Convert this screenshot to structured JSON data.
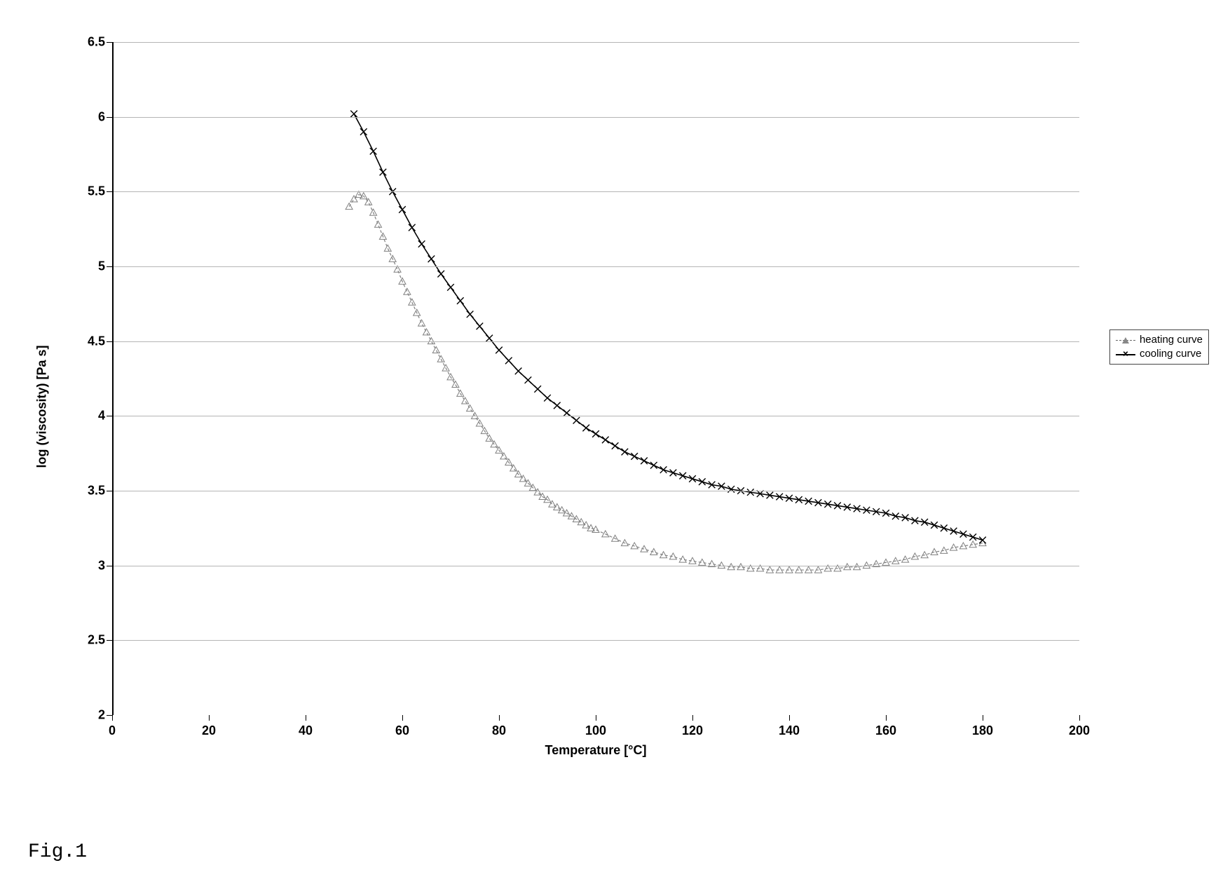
{
  "figure": {
    "caption": "Fig.1",
    "caption_font": "Courier New",
    "caption_fontsize": 28
  },
  "chart": {
    "type": "line",
    "background_color": "#ffffff",
    "grid_color": "#b5b5b5",
    "axis_color": "#000000",
    "font_family": "Arial",
    "label_fontsize": 18,
    "tick_fontsize": 18,
    "x_axis": {
      "title": "Temperature [°C]",
      "min": 0,
      "max": 200,
      "tick_step": 20,
      "ticks": [
        0,
        20,
        40,
        60,
        80,
        100,
        120,
        140,
        160,
        180,
        200
      ]
    },
    "y_axis": {
      "title": "log (viscosity) [Pa s]",
      "min": 2,
      "max": 6.5,
      "tick_step": 0.5,
      "ticks": [
        2,
        2.5,
        3,
        3.5,
        4,
        4.5,
        5,
        5.5,
        6,
        6.5
      ]
    },
    "legend": {
      "position": "right-middle",
      "border_color": "#444444",
      "items": [
        {
          "key": "heating",
          "label": "heating curve",
          "marker": "triangle",
          "line_style": "dashed",
          "color": "#808080"
        },
        {
          "key": "cooling",
          "label": "cooling curve",
          "marker": "x",
          "line_style": "solid",
          "color": "#000000"
        }
      ]
    },
    "series": {
      "heating": {
        "label": "heating curve",
        "marker": "triangle",
        "marker_size": 5,
        "line_style": "dashed",
        "line_width": 1.2,
        "color": "#808080",
        "data": [
          [
            49,
            5.4
          ],
          [
            50,
            5.45
          ],
          [
            51,
            5.48
          ],
          [
            52,
            5.47
          ],
          [
            53,
            5.43
          ],
          [
            54,
            5.36
          ],
          [
            55,
            5.28
          ],
          [
            56,
            5.2
          ],
          [
            57,
            5.12
          ],
          [
            58,
            5.05
          ],
          [
            59,
            4.98
          ],
          [
            60,
            4.9
          ],
          [
            61,
            4.83
          ],
          [
            62,
            4.76
          ],
          [
            63,
            4.69
          ],
          [
            64,
            4.62
          ],
          [
            65,
            4.56
          ],
          [
            66,
            4.5
          ],
          [
            67,
            4.44
          ],
          [
            68,
            4.38
          ],
          [
            69,
            4.32
          ],
          [
            70,
            4.26
          ],
          [
            71,
            4.21
          ],
          [
            72,
            4.15
          ],
          [
            73,
            4.1
          ],
          [
            74,
            4.05
          ],
          [
            75,
            4.0
          ],
          [
            76,
            3.95
          ],
          [
            77,
            3.9
          ],
          [
            78,
            3.85
          ],
          [
            79,
            3.81
          ],
          [
            80,
            3.77
          ],
          [
            81,
            3.73
          ],
          [
            82,
            3.69
          ],
          [
            83,
            3.65
          ],
          [
            84,
            3.61
          ],
          [
            85,
            3.58
          ],
          [
            86,
            3.55
          ],
          [
            87,
            3.52
          ],
          [
            88,
            3.49
          ],
          [
            89,
            3.46
          ],
          [
            90,
            3.44
          ],
          [
            91,
            3.41
          ],
          [
            92,
            3.39
          ],
          [
            93,
            3.37
          ],
          [
            94,
            3.35
          ],
          [
            95,
            3.33
          ],
          [
            96,
            3.31
          ],
          [
            97,
            3.29
          ],
          [
            98,
            3.27
          ],
          [
            99,
            3.25
          ],
          [
            100,
            3.24
          ],
          [
            102,
            3.21
          ],
          [
            104,
            3.18
          ],
          [
            106,
            3.15
          ],
          [
            108,
            3.13
          ],
          [
            110,
            3.11
          ],
          [
            112,
            3.09
          ],
          [
            114,
            3.07
          ],
          [
            116,
            3.06
          ],
          [
            118,
            3.04
          ],
          [
            120,
            3.03
          ],
          [
            122,
            3.02
          ],
          [
            124,
            3.01
          ],
          [
            126,
            3.0
          ],
          [
            128,
            2.99
          ],
          [
            130,
            2.99
          ],
          [
            132,
            2.98
          ],
          [
            134,
            2.98
          ],
          [
            136,
            2.97
          ],
          [
            138,
            2.97
          ],
          [
            140,
            2.97
          ],
          [
            142,
            2.97
          ],
          [
            144,
            2.97
          ],
          [
            146,
            2.97
          ],
          [
            148,
            2.98
          ],
          [
            150,
            2.98
          ],
          [
            152,
            2.99
          ],
          [
            154,
            2.99
          ],
          [
            156,
            3.0
          ],
          [
            158,
            3.01
          ],
          [
            160,
            3.02
          ],
          [
            162,
            3.03
          ],
          [
            164,
            3.04
          ],
          [
            166,
            3.06
          ],
          [
            168,
            3.07
          ],
          [
            170,
            3.09
          ],
          [
            172,
            3.1
          ],
          [
            174,
            3.12
          ],
          [
            176,
            3.13
          ],
          [
            178,
            3.14
          ],
          [
            180,
            3.15
          ]
        ]
      },
      "cooling": {
        "label": "cooling curve",
        "marker": "x",
        "marker_size": 6,
        "line_style": "solid",
        "line_width": 1.6,
        "color": "#000000",
        "data": [
          [
            180,
            3.17
          ],
          [
            178,
            3.19
          ],
          [
            176,
            3.21
          ],
          [
            174,
            3.23
          ],
          [
            172,
            3.25
          ],
          [
            170,
            3.27
          ],
          [
            168,
            3.29
          ],
          [
            166,
            3.3
          ],
          [
            164,
            3.32
          ],
          [
            162,
            3.33
          ],
          [
            160,
            3.35
          ],
          [
            158,
            3.36
          ],
          [
            156,
            3.37
          ],
          [
            154,
            3.38
          ],
          [
            152,
            3.39
          ],
          [
            150,
            3.4
          ],
          [
            148,
            3.41
          ],
          [
            146,
            3.42
          ],
          [
            144,
            3.43
          ],
          [
            142,
            3.44
          ],
          [
            140,
            3.45
          ],
          [
            138,
            3.46
          ],
          [
            136,
            3.47
          ],
          [
            134,
            3.48
          ],
          [
            132,
            3.49
          ],
          [
            130,
            3.5
          ],
          [
            128,
            3.51
          ],
          [
            126,
            3.53
          ],
          [
            124,
            3.54
          ],
          [
            122,
            3.56
          ],
          [
            120,
            3.58
          ],
          [
            118,
            3.6
          ],
          [
            116,
            3.62
          ],
          [
            114,
            3.64
          ],
          [
            112,
            3.67
          ],
          [
            110,
            3.7
          ],
          [
            108,
            3.73
          ],
          [
            106,
            3.76
          ],
          [
            104,
            3.8
          ],
          [
            102,
            3.84
          ],
          [
            100,
            3.88
          ],
          [
            98,
            3.92
          ],
          [
            96,
            3.97
          ],
          [
            94,
            4.02
          ],
          [
            92,
            4.07
          ],
          [
            90,
            4.12
          ],
          [
            88,
            4.18
          ],
          [
            86,
            4.24
          ],
          [
            84,
            4.3
          ],
          [
            82,
            4.37
          ],
          [
            80,
            4.44
          ],
          [
            78,
            4.52
          ],
          [
            76,
            4.6
          ],
          [
            74,
            4.68
          ],
          [
            72,
            4.77
          ],
          [
            70,
            4.86
          ],
          [
            68,
            4.95
          ],
          [
            66,
            5.05
          ],
          [
            64,
            5.15
          ],
          [
            62,
            5.26
          ],
          [
            60,
            5.38
          ],
          [
            58,
            5.5
          ],
          [
            56,
            5.63
          ],
          [
            54,
            5.77
          ],
          [
            52,
            5.9
          ],
          [
            50,
            6.02
          ]
        ]
      }
    }
  }
}
